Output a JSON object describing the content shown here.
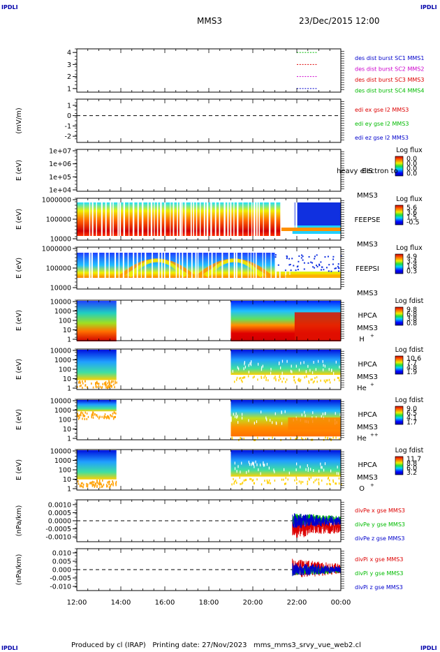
{
  "corner_marks": {
    "tl": "IPDLI",
    "tr": "IPDLI",
    "bl": "IPDLI",
    "br": "IPDLI"
  },
  "header": {
    "spacecraft": "MMS3",
    "datetime": "23/Dec/2015 12:00"
  },
  "footer": {
    "text": "Produced by cl (IRAP)   Printing date: 27/Nov/2023   mms_mms3_srvy_vue_web2.cl"
  },
  "time_axis": {
    "ticks": [
      "12:00",
      "14:00",
      "16:00",
      "18:00",
      "20:00",
      "22:00",
      "00:00"
    ]
  },
  "panels": [
    {
      "name": "des-dist-burst",
      "ylabel": "",
      "yticks": [
        "4",
        "3",
        "2",
        "1"
      ],
      "ylim": [
        0.7,
        4.3
      ],
      "legend": [
        {
          "text": "des dist burst SC1 MMS1",
          "color": "#0000cc"
        },
        {
          "text": "des dist burst SC2 MMS2",
          "color": "#cc00cc"
        },
        {
          "text": "des dist burst SC3 MMS3",
          "color": "#dd0000"
        },
        {
          "text": "des dist burst SC4 MMS4",
          "color": "#00bb00"
        }
      ]
    },
    {
      "name": "edi-e-field",
      "ylabel": "(mV/m)",
      "yticks": [
        "1",
        "0",
        "-1",
        "-2"
      ],
      "ylim": [
        -2.6,
        1.6
      ],
      "legend": [
        {
          "text": "edi ex gse l2 MMS3",
          "color": "#dd0000"
        },
        {
          "text": "edi ey gse l2 MMS3",
          "color": "#00bb00"
        },
        {
          "text": "edi ez gse l2 MMS3",
          "color": "#0000cc"
        }
      ]
    },
    {
      "name": "eis",
      "ylabel": "E (eV)",
      "yticks": [
        "1e+07",
        "1e+06",
        "1e+05",
        "1e+04"
      ],
      "instrument": "EIS",
      "spacecraft": "MMS3",
      "overlap_text": "heavy electron to",
      "colorbar": {
        "title": "Log flux",
        "ticks": [
          "0.0",
          "0.0",
          "0.0",
          "0.0"
        ]
      }
    },
    {
      "name": "feeps-e",
      "ylabel": "E (eV)",
      "yticks": [
        "1000000",
        "100000",
        "10000"
      ],
      "instrument": "FEEPSE",
      "spacecraft": "MMS3",
      "colorbar": {
        "title": "Log flux",
        "ticks": [
          "5.6",
          "3.6",
          "1.5",
          "-0.5"
        ]
      }
    },
    {
      "name": "feeps-i",
      "ylabel": "E (eV)",
      "yticks": [
        "1000000",
        "100000",
        "10000"
      ],
      "instrument": "FEEPSI",
      "spacecraft": "MMS3",
      "colorbar": {
        "title": "Log flux",
        "ticks": [
          "4.9",
          "3.4",
          "1.8",
          "0.3"
        ]
      }
    },
    {
      "name": "hpca-h",
      "ylabel": "E (eV)",
      "yticks": [
        "10000",
        "1000",
        "100",
        "10",
        "1"
      ],
      "instrument": "HPCA",
      "spacecraft": "MMS3",
      "species": "H",
      "species_sup": "+",
      "colorbar": {
        "title": "Log fdist",
        "ticks": [
          "9.8",
          "6.8",
          "3.8",
          "0.8"
        ]
      }
    },
    {
      "name": "hpca-he",
      "ylabel": "E (eV)",
      "yticks": [
        "10000",
        "1000",
        "100",
        "10",
        "1"
      ],
      "instrument": "HPCA",
      "spacecraft": "MMS3",
      "species": "He",
      "species_sup": "+",
      "colorbar": {
        "title": "Log fdist",
        "ticks": [
          "10.6",
          "7.7",
          "4.8",
          "1.9"
        ]
      }
    },
    {
      "name": "hpca-he2",
      "ylabel": "E (eV)",
      "yticks": [
        "10000",
        "1000",
        "100",
        "10",
        "1"
      ],
      "instrument": "HPCA",
      "spacecraft": "MMS3",
      "species": "He",
      "species_sup": "++",
      "colorbar": {
        "title": "Log fdist",
        "ticks": [
          "9.0",
          "6.5",
          "4.1",
          "1.7"
        ]
      }
    },
    {
      "name": "hpca-o",
      "ylabel": "E (eV)",
      "yticks": [
        "10000",
        "1000",
        "100",
        "10",
        "1"
      ],
      "instrument": "HPCA",
      "spacecraft": "MMS3",
      "species": "O",
      "species_sup": "+",
      "colorbar": {
        "title": "Log fdist",
        "ticks": [
          "11.7",
          "8.8",
          "6.0",
          "3.2"
        ]
      }
    },
    {
      "name": "div-pe",
      "ylabel": "(nPa/km)",
      "yticks": [
        "0.0010",
        "0.0005",
        "0.0000",
        "-0.0005",
        "-0.0010"
      ],
      "ylim": [
        -0.0013,
        0.0013
      ],
      "legend": [
        {
          "text": "divPe x gse MMS3",
          "color": "#dd0000"
        },
        {
          "text": "divPe y gse MMS3",
          "color": "#00bb00"
        },
        {
          "text": "divPe z gse MMS3",
          "color": "#0000cc"
        }
      ]
    },
    {
      "name": "div-pi",
      "ylabel": "(nPa/km)",
      "yticks": [
        "0.010",
        "0.005",
        "0.000",
        "-0.005",
        "-0.010"
      ],
      "ylim": [
        -0.0125,
        0.0125
      ],
      "legend": [
        {
          "text": "divPi x gse MMS3",
          "color": "#dd0000"
        },
        {
          "text": "divPi y gse MMS3",
          "color": "#00bb00"
        },
        {
          "text": "divPi z gse MMS3",
          "color": "#0000cc"
        }
      ]
    }
  ],
  "chart_data": [
    {
      "type": "scatter",
      "panel": "des-dist-burst",
      "x_unit": "hours since 23/Dec/2015 12:00",
      "series": [
        {
          "name": "des dist burst SC1 MMS1",
          "x_range": [
            22.0,
            22.9
          ],
          "y": 1
        },
        {
          "name": "des dist burst SC2 MMS2",
          "x_range": [
            22.0,
            22.9
          ],
          "y": 2
        },
        {
          "name": "des dist burst SC3 MMS3",
          "x_range": [
            22.0,
            22.9
          ],
          "y": 3
        },
        {
          "name": "des dist burst SC4 MMS4",
          "x_range": [
            22.0,
            22.9
          ],
          "y": 4
        }
      ]
    },
    {
      "type": "line",
      "panel": "edi-e-field",
      "reference_line": 0,
      "series": []
    },
    {
      "type": "heatmap",
      "panel": "eis",
      "data": "none"
    },
    {
      "type": "heatmap",
      "panel": "feeps-e",
      "coverage": [
        [
          12.0,
          24.0
        ]
      ],
      "features": "striped high flux 12:00-21:30, dense blue band above 22:00"
    },
    {
      "type": "heatmap",
      "panel": "feeps-i",
      "coverage": [
        [
          12.0,
          24.0
        ]
      ],
      "features": "arched yellow-red bands between 14:00 and 20:00"
    },
    {
      "type": "heatmap",
      "panel": "hpca-h",
      "coverage": [
        [
          12.0,
          13.8
        ],
        [
          19.0,
          24.0
        ]
      ]
    },
    {
      "type": "heatmap",
      "panel": "hpca-he",
      "coverage": [
        [
          12.0,
          13.8
        ],
        [
          19.0,
          24.0
        ]
      ]
    },
    {
      "type": "heatmap",
      "panel": "hpca-he2",
      "coverage": [
        [
          12.0,
          13.8
        ],
        [
          19.0,
          24.0
        ]
      ]
    },
    {
      "type": "heatmap",
      "panel": "hpca-o",
      "coverage": [
        [
          12.0,
          13.8
        ],
        [
          19.0,
          24.0
        ]
      ]
    },
    {
      "type": "line",
      "panel": "div-pe",
      "coverage": [
        [
          21.8,
          24.0
        ]
      ],
      "reference_line": 0,
      "series": [
        {
          "name": "divPe x gse MMS3",
          "offset": -0.0004,
          "amplitude": 0.0007
        },
        {
          "name": "divPe y gse MMS3",
          "offset": 0.0001,
          "amplitude": 0.0004
        },
        {
          "name": "divPe z gse MMS3",
          "offset": 0.0,
          "amplitude": 0.0005
        }
      ]
    },
    {
      "type": "line",
      "panel": "div-pi",
      "coverage": [
        [
          21.8,
          24.0
        ]
      ],
      "reference_line": 0,
      "series": [
        {
          "name": "divPi x gse MMS3",
          "offset": 0.0005,
          "amplitude": 0.006
        },
        {
          "name": "divPi y gse MMS3",
          "offset": -0.0005,
          "amplitude": 0.003
        },
        {
          "name": "divPi z gse MMS3",
          "offset": 0.0,
          "amplitude": 0.004
        }
      ]
    }
  ]
}
